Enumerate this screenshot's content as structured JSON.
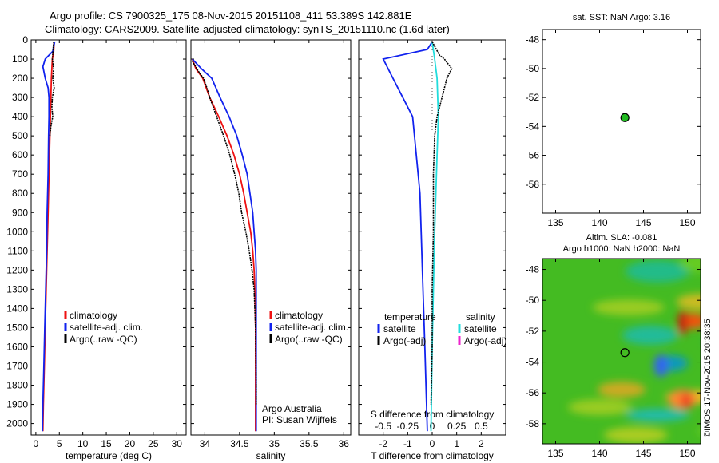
{
  "header": {
    "title1": "Argo profile: CS 7900325_175 08-Nov-2015 20151108_411 53.389S 142.881E",
    "title2": "Climatology: CARS2009. Satellite-adjusted climatology: synTS_20151110.nc (1.6d later)"
  },
  "colors": {
    "clim": "#ee1111",
    "sat": "#1122ee",
    "argo": "#000000",
    "cyan": "#22dddd",
    "magenta": "#ee22cc",
    "dot": "#22bb22"
  },
  "watermark": "©IMOS 17-Nov-2015 20:38:35",
  "chart_data": [
    {
      "id": "temperature",
      "type": "line",
      "xlabel": "temperature (deg C)",
      "xlim": [
        -1,
        32
      ],
      "ylim": [
        0,
        2060
      ],
      "xticks": [
        0,
        5,
        10,
        15,
        20,
        25,
        30
      ],
      "yticks": [
        0,
        100,
        200,
        300,
        400,
        500,
        600,
        700,
        800,
        900,
        1000,
        1100,
        1200,
        1300,
        1400,
        1500,
        1600,
        1700,
        1800,
        1900,
        2000
      ],
      "legend": [
        "climatology",
        "satellite-adj. clim.",
        "Argo(..raw -QC)"
      ],
      "series": [
        {
          "name": "climatology",
          "color": "clim",
          "points": [
            [
              3.9,
              10
            ],
            [
              3.8,
              60
            ],
            [
              3.5,
              100
            ],
            [
              3.4,
              150
            ],
            [
              3.3,
              200
            ],
            [
              3.2,
              300
            ],
            [
              3.1,
              400
            ],
            [
              3.0,
              500
            ],
            [
              2.8,
              700
            ],
            [
              2.6,
              900
            ],
            [
              2.4,
              1100
            ],
            [
              2.2,
              1300
            ],
            [
              2.0,
              1500
            ],
            [
              1.8,
              1700
            ],
            [
              1.6,
              1900
            ],
            [
              1.5,
              2040
            ]
          ]
        },
        {
          "name": "satellite-adj. clim.",
          "color": "sat",
          "points": [
            [
              4.0,
              10
            ],
            [
              3.6,
              60
            ],
            [
              2.0,
              100
            ],
            [
              1.5,
              140
            ],
            [
              2.0,
              200
            ],
            [
              2.6,
              250
            ],
            [
              2.8,
              300
            ],
            [
              2.8,
              400
            ],
            [
              2.7,
              500
            ],
            [
              2.6,
              700
            ],
            [
              2.4,
              900
            ],
            [
              2.3,
              1100
            ],
            [
              2.1,
              1300
            ],
            [
              1.9,
              1500
            ],
            [
              1.7,
              1700
            ],
            [
              1.5,
              1900
            ],
            [
              1.4,
              2040
            ]
          ]
        },
        {
          "name": "Argo(..raw -QC)",
          "color": "argo",
          "points": [
            [
              3.8,
              10
            ],
            [
              3.5,
              100
            ],
            [
              3.8,
              150
            ],
            [
              3.6,
              200
            ],
            [
              3.9,
              250
            ],
            [
              3.5,
              300
            ],
            [
              3.4,
              350
            ],
            [
              3.6,
              400
            ],
            [
              3.2,
              450
            ],
            [
              3.0,
              500
            ]
          ]
        }
      ]
    },
    {
      "id": "salinity",
      "type": "line",
      "xlabel": "salinity",
      "xlim": [
        33.8,
        36.1
      ],
      "ylim": [
        0,
        2060
      ],
      "xticks": [
        34,
        34.5,
        35,
        35.5,
        36
      ],
      "legend": [
        "climatology",
        "satellite-adj. clim.",
        "Argo(..raw -QC)"
      ],
      "annotations": [
        "Argo Australia",
        "PI: Susan Wijffels"
      ],
      "series": [
        {
          "name": "climatology",
          "color": "clim",
          "points": [
            [
              33.82,
              100
            ],
            [
              33.87,
              150
            ],
            [
              33.97,
              200
            ],
            [
              34.07,
              300
            ],
            [
              34.2,
              400
            ],
            [
              34.32,
              500
            ],
            [
              34.42,
              600
            ],
            [
              34.5,
              700
            ],
            [
              34.56,
              800
            ],
            [
              34.61,
              900
            ],
            [
              34.66,
              1000
            ],
            [
              34.69,
              1100
            ],
            [
              34.71,
              1200
            ],
            [
              34.72,
              1300
            ],
            [
              34.73,
              1500
            ],
            [
              34.73,
              1700
            ],
            [
              34.73,
              2040
            ]
          ]
        },
        {
          "name": "satellite-adj. clim.",
          "color": "sat",
          "points": [
            [
              33.82,
              100
            ],
            [
              33.95,
              150
            ],
            [
              34.1,
              200
            ],
            [
              34.22,
              300
            ],
            [
              34.35,
              400
            ],
            [
              34.46,
              500
            ],
            [
              34.54,
              600
            ],
            [
              34.61,
              700
            ],
            [
              34.65,
              800
            ],
            [
              34.69,
              900
            ],
            [
              34.71,
              1000
            ],
            [
              34.73,
              1100
            ],
            [
              34.74,
              1200
            ],
            [
              34.74,
              1400
            ],
            [
              34.74,
              1700
            ],
            [
              34.74,
              2040
            ]
          ]
        },
        {
          "name": "Argo(..raw -QC)",
          "color": "argo",
          "points": [
            [
              33.82,
              110
            ],
            [
              33.9,
              160
            ],
            [
              33.98,
              200
            ],
            [
              34.03,
              250
            ],
            [
              34.07,
              300
            ],
            [
              34.17,
              400
            ],
            [
              34.27,
              500
            ],
            [
              34.36,
              600
            ],
            [
              34.43,
              700
            ],
            [
              34.49,
              800
            ],
            [
              34.53,
              900
            ],
            [
              34.59,
              1000
            ],
            [
              34.64,
              1100
            ],
            [
              34.68,
              1200
            ],
            [
              34.71,
              1300
            ],
            [
              34.73,
              1500
            ],
            [
              34.74,
              1800
            ],
            [
              34.74,
              1900
            ]
          ]
        }
      ]
    },
    {
      "id": "difference",
      "type": "line",
      "xlabel": "T difference from climatology",
      "xlabel_top": "S difference from climatology",
      "xlim": [
        -3,
        3
      ],
      "ylim": [
        0,
        2060
      ],
      "xticks": [
        -2,
        -1,
        0,
        1,
        2
      ],
      "xticklabels": [
        "-2",
        "-1",
        "0",
        "1",
        "2"
      ],
      "xticks_top": [
        -0.5,
        -0.25,
        0,
        0.25,
        0.5
      ],
      "xticklabels_top": [
        "-0.5",
        "-0.25",
        "0",
        "0.25",
        "0.5"
      ],
      "legend_headers": [
        "temperature",
        "salinity"
      ],
      "legend": [
        "satellite",
        "Argo(-adj)",
        "satellite",
        "Argo(-adj)"
      ],
      "series": [
        {
          "name": "T satellite",
          "color": "sat",
          "points": [
            [
              0,
              10
            ],
            [
              -0.2,
              50
            ],
            [
              -2.0,
              100
            ],
            [
              -1.6,
              200
            ],
            [
              -0.8,
              400
            ],
            [
              -0.5,
              800
            ],
            [
              -0.4,
              1200
            ],
            [
              -0.3,
              1600
            ],
            [
              -0.2,
              2040
            ]
          ]
        },
        {
          "name": "S satellite",
          "color": "cyan",
          "points": [
            [
              0,
              10
            ],
            [
              0.1,
              100
            ],
            [
              0.2,
              200
            ],
            [
              0.25,
              400
            ],
            [
              0.2,
              600
            ],
            [
              0.15,
              800
            ],
            [
              0.1,
              1000
            ],
            [
              0.05,
              1300
            ],
            [
              0.0,
              1600
            ],
            [
              -0.05,
              2040
            ]
          ]
        },
        {
          "name": "Argo(-adj)",
          "color": "argo",
          "points": [
            [
              0,
              10
            ],
            [
              0.3,
              80
            ],
            [
              0.5,
              100
            ],
            [
              0.8,
              150
            ],
            [
              0.6,
              200
            ],
            [
              0.4,
              300
            ],
            [
              0.2,
              400
            ],
            [
              0.1,
              500
            ],
            [
              0.05,
              700
            ],
            [
              0.05,
              1000
            ],
            [
              0.0,
              1300
            ],
            [
              0.0,
              1600
            ],
            [
              -0.05,
              1900
            ]
          ]
        }
      ]
    },
    {
      "id": "sst-map",
      "type": "scatter",
      "title": "sat. SST: NaN Argo: 3.16",
      "xlim": [
        133.5,
        151.5
      ],
      "ylim": [
        -60,
        -47.3
      ],
      "xticks": [
        135,
        140,
        145,
        150
      ],
      "yticks": [
        -48,
        -50,
        -52,
        -54,
        -56,
        -58
      ],
      "series": [
        {
          "name": "",
          "points": [
            [
              142.881,
              -53.389
            ]
          ]
        }
      ]
    },
    {
      "id": "sla-map",
      "type": "heatmap",
      "title": "Altim. SLA: -0.081",
      "subtitle": "Argo h1000: NaN h2000: NaN",
      "xlim": [
        133.5,
        151.5
      ],
      "ylim": [
        -59.3,
        -47.3
      ],
      "xticks": [
        135,
        140,
        145,
        150
      ],
      "yticks": [
        -48,
        -50,
        -52,
        -54,
        -56,
        -58
      ],
      "series": [
        {
          "name": "",
          "points": [
            [
              142.881,
              -53.389
            ]
          ]
        }
      ]
    }
  ]
}
